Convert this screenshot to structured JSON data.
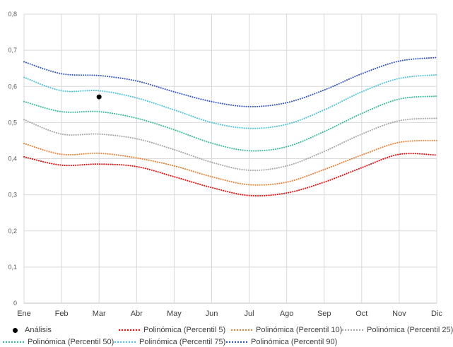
{
  "chart_data": {
    "type": "line",
    "categories": [
      "Ene",
      "Feb",
      "Mar",
      "Abr",
      "May",
      "Jun",
      "Jul",
      "Ago",
      "Sep",
      "Oct",
      "Nov",
      "Dic"
    ],
    "y_ticks": [
      "0",
      "0,1",
      "0,2",
      "0,3",
      "0,4",
      "0,5",
      "0,6",
      "0,7",
      "0,8"
    ],
    "ylim": [
      0,
      0.8
    ],
    "grid": true,
    "legend_position": "bottom",
    "series": [
      {
        "name": "Polinómica (Percentil 5)",
        "color": "#ff0000",
        "values": [
          0.405,
          0.382,
          0.385,
          0.378,
          0.35,
          0.32,
          0.298,
          0.305,
          0.335,
          0.375,
          0.412,
          0.41
        ]
      },
      {
        "name": "Polinómica (Percentil 10)",
        "color": "#ed7d31",
        "values": [
          0.442,
          0.412,
          0.415,
          0.402,
          0.38,
          0.35,
          0.328,
          0.335,
          0.37,
          0.41,
          0.445,
          0.45
        ]
      },
      {
        "name": "Polinómica (Percentil 25)",
        "color": "#a5a5a5",
        "values": [
          0.508,
          0.468,
          0.468,
          0.455,
          0.425,
          0.39,
          0.368,
          0.38,
          0.42,
          0.468,
          0.505,
          0.512
        ]
      },
      {
        "name": "Polinómica (Percentil 50)",
        "color": "#33bb99",
        "values": [
          0.558,
          0.53,
          0.53,
          0.512,
          0.48,
          0.443,
          0.422,
          0.433,
          0.475,
          0.525,
          0.565,
          0.573
        ]
      },
      {
        "name": "Polinómica (Percentil 75)",
        "color": "#4dc3dd",
        "values": [
          0.625,
          0.588,
          0.588,
          0.568,
          0.535,
          0.5,
          0.484,
          0.495,
          0.535,
          0.585,
          0.622,
          0.632
        ]
      },
      {
        "name": "Polinómica (Percentil 90)",
        "color": "#3355cc",
        "values": [
          0.668,
          0.635,
          0.63,
          0.615,
          0.585,
          0.558,
          0.544,
          0.555,
          0.59,
          0.635,
          0.67,
          0.68
        ]
      }
    ],
    "points": [
      {
        "name": "Análisis",
        "color": "#000000",
        "x": "Mar",
        "y": 0.571
      }
    ]
  }
}
